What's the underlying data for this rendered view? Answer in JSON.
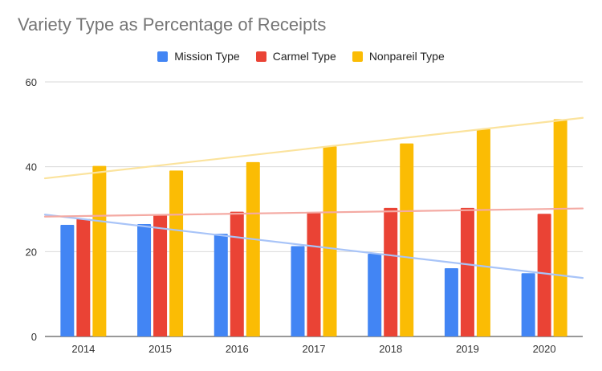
{
  "chart_data": {
    "type": "bar",
    "title": "Variety Type as Percentage of Receipts",
    "xlabel": "",
    "ylabel": "",
    "categories": [
      "2014",
      "2015",
      "2016",
      "2017",
      "2018",
      "2019",
      "2020"
    ],
    "series": [
      {
        "name": "Mission Type",
        "color": "#4285f4",
        "trend_color": "#a8c4f8",
        "values": [
          26.3,
          26.5,
          24.2,
          21.3,
          19.5,
          16.1,
          14.9
        ]
      },
      {
        "name": "Carmel Type",
        "color": "#ea4335",
        "trend_color": "#f4aaa3",
        "values": [
          27.7,
          28.7,
          29.4,
          29.2,
          30.3,
          30.3,
          28.9
        ]
      },
      {
        "name": "Nonpareil Type",
        "color": "#fbbc04",
        "trend_color": "#fbe39d",
        "values": [
          40.2,
          39.1,
          41.1,
          44.8,
          45.5,
          48.9,
          51.2
        ]
      }
    ],
    "trendlines": true,
    "ylim": [
      0,
      60
    ],
    "yticks": [
      0,
      20,
      40,
      60
    ],
    "grid": true,
    "legend_position": "top"
  }
}
